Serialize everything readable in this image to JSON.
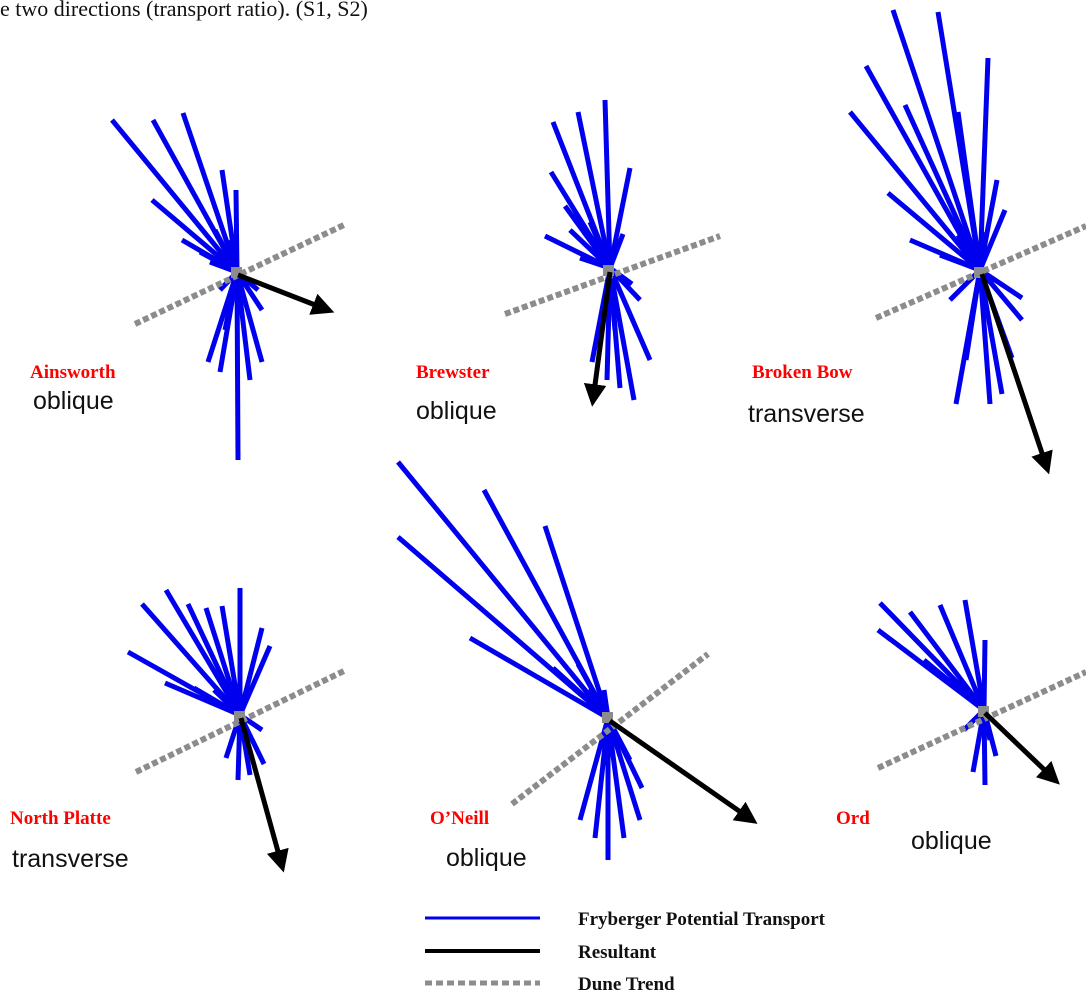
{
  "caption": "e two directions (transport ratio). (S1, S2)",
  "colors": {
    "transport": "#0000ee",
    "resultant": "#000000",
    "dune_trend": "#8c8c8c",
    "station_label": "#ff0000"
  },
  "stations": [
    {
      "name": "Ainsworth",
      "trend": "oblique"
    },
    {
      "name": "Brewster",
      "trend": "oblique"
    },
    {
      "name": "Broken Bow",
      "trend": "transverse"
    },
    {
      "name": "North Platte",
      "trend": "transverse"
    },
    {
      "name": "O’Neill",
      "trend": "oblique"
    },
    {
      "name": "Ord",
      "trend": "oblique"
    }
  ],
  "legend": {
    "transport": "Fryberger Potential Transport",
    "resultant": "Resultant",
    "dune_trend": "Dune Trend"
  }
}
